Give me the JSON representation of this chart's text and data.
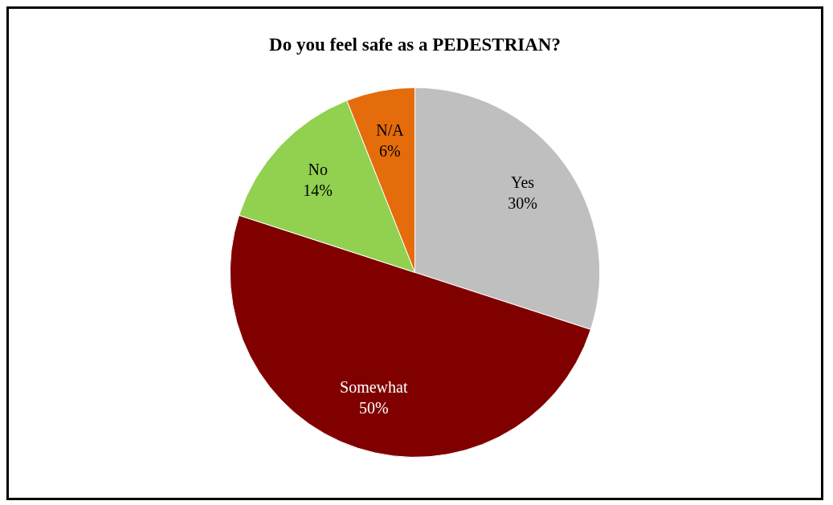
{
  "chart_data": {
    "type": "pie",
    "title": "Do you feel safe as a PEDESTRIAN?",
    "categories": [
      "Yes",
      "Somewhat",
      "No",
      "N/A"
    ],
    "values": [
      30,
      50,
      14,
      6
    ],
    "colors": [
      "#bfbfbf",
      "#800000",
      "#92d050",
      "#e46c0a"
    ],
    "value_labels": [
      "30%",
      "50%",
      "14%",
      "6%"
    ],
    "legend": false
  }
}
